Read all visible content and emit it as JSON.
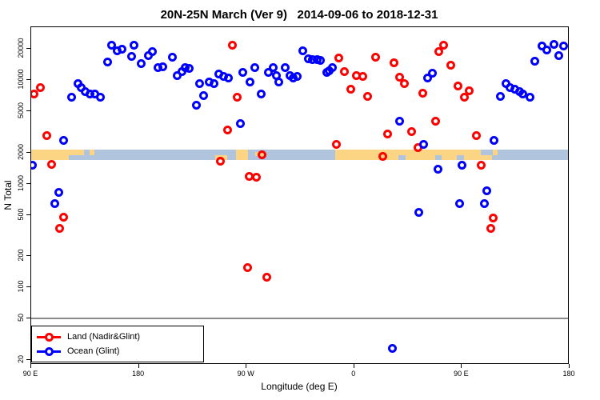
{
  "title": "20N-25N March (Ver 9)   2014-09-06 to 2018-12-31",
  "legend": {
    "items": [
      {
        "label": "Land (Nadir&Glint)",
        "color": "#ff0000"
      },
      {
        "label": "Ocean (Glint)",
        "color": "#0000ff"
      }
    ]
  },
  "chart_data": {
    "type": "scatter",
    "title": "20N-25N March (Ver 9)   2014-09-06 to 2018-12-31",
    "xlabel": "Longitude (deg E)",
    "ylabel": "N Total",
    "x_axis": {
      "wrap_note": "axis spans 450 deg of longitude starting at 90E, wrapping through 180/-180, 0, back to 180",
      "range_deg": [
        90,
        540
      ],
      "ticks": [
        {
          "u": 90,
          "label": "90 E"
        },
        {
          "u": 180,
          "label": "180"
        },
        {
          "u": 270,
          "label": "90 W"
        },
        {
          "u": 360,
          "label": "0"
        },
        {
          "u": 450,
          "label": "90 E"
        },
        {
          "u": 540,
          "label": "180"
        }
      ]
    },
    "y_axis": {
      "scale": "log",
      "ticks": [
        20,
        50,
        100,
        200,
        500,
        1000,
        2000,
        5000,
        10000,
        20000
      ],
      "log_range": [
        1.255,
        4.51
      ]
    },
    "reference_line": {
      "y": 50,
      "color": "#8a8a8a"
    },
    "land_ocean_strip": {
      "center_N": 2000,
      "land_color": "#fbd584",
      "ocean_color": "#b0c4de",
      "land_segments": [
        {
          "from": 90,
          "to": 121.5,
          "part": "full"
        },
        {
          "from": 121.5,
          "to": 134,
          "part": "top"
        },
        {
          "from": 139,
          "to": 143,
          "part": "top"
        },
        {
          "from": 244,
          "to": 254,
          "part": "bottom"
        },
        {
          "from": 261,
          "to": 271,
          "part": "full"
        },
        {
          "from": 277,
          "to": 285,
          "part": "mid"
        },
        {
          "from": 344,
          "to": 475,
          "part": "full"
        },
        {
          "from": 476,
          "to": 480,
          "part": "top"
        }
      ],
      "ocean_notches": [
        {
          "from": 397,
          "to": 403,
          "part": "bottom"
        },
        {
          "from": 428,
          "to": 433,
          "part": "bottom"
        },
        {
          "from": 446,
          "to": 452,
          "part": "bottom"
        },
        {
          "from": 466,
          "to": 475,
          "part": "top"
        }
      ]
    },
    "series": [
      {
        "name": "Land (Nadir&Glint)",
        "color": "#ff0000",
        "points": [
          [
            98,
            8500
          ],
          [
            92,
            7300
          ],
          [
            103,
            2900
          ],
          [
            107,
            1550
          ],
          [
            117,
            480
          ],
          [
            114,
            370
          ],
          [
            258,
            21800
          ],
          [
            262,
            6900
          ],
          [
            248,
            1660
          ],
          [
            254,
            3300
          ],
          [
            272,
            1170
          ],
          [
            278,
            1150
          ],
          [
            283,
            1920
          ],
          [
            271,
            155
          ],
          [
            287,
            125
          ],
          [
            345,
            2400
          ],
          [
            347,
            16400
          ],
          [
            352,
            12100
          ],
          [
            357,
            8200
          ],
          [
            362,
            11100
          ],
          [
            367,
            10900
          ],
          [
            371,
            7000
          ],
          [
            378,
            16700
          ],
          [
            384,
            1850
          ],
          [
            388,
            3000
          ],
          [
            393,
            14800
          ],
          [
            398,
            10700
          ],
          [
            402,
            9300
          ],
          [
            408,
            3200
          ],
          [
            413,
            2250
          ],
          [
            417,
            7500
          ],
          [
            428,
            4000
          ],
          [
            431,
            18900
          ],
          [
            435,
            21800
          ],
          [
            441,
            14000
          ],
          [
            447,
            8700
          ],
          [
            452,
            6900
          ],
          [
            456,
            7900
          ],
          [
            462,
            2900
          ],
          [
            466,
            1520
          ],
          [
            476,
            470
          ],
          [
            474,
            370
          ]
        ]
      },
      {
        "name": "Ocean (Glint)",
        "color": "#0000ff",
        "points": [
          [
            91,
            1520
          ],
          [
            124,
            6900
          ],
          [
            129,
            9300
          ],
          [
            132,
            8500
          ],
          [
            135,
            7800
          ],
          [
            139,
            7400
          ],
          [
            143,
            7300
          ],
          [
            148,
            6900
          ],
          [
            117,
            2640
          ],
          [
            113,
            830
          ],
          [
            110,
            650
          ],
          [
            154,
            15000
          ],
          [
            157,
            21800
          ],
          [
            162,
            19300
          ],
          [
            166,
            20000
          ],
          [
            174,
            17000
          ],
          [
            176,
            21800
          ],
          [
            182,
            14500
          ],
          [
            188,
            17300
          ],
          [
            191,
            18900
          ],
          [
            196,
            13300
          ],
          [
            200,
            13500
          ],
          [
            208,
            16700
          ],
          [
            212,
            11100
          ],
          [
            216,
            12100
          ],
          [
            219,
            13300
          ],
          [
            222,
            13000
          ],
          [
            231,
            9300
          ],
          [
            234,
            7100
          ],
          [
            228,
            5700
          ],
          [
            239,
            9600
          ],
          [
            243,
            9300
          ],
          [
            247,
            11500
          ],
          [
            251,
            10900
          ],
          [
            255,
            10400
          ],
          [
            265,
            3800
          ],
          [
            267,
            11900
          ],
          [
            273,
            9600
          ],
          [
            277,
            13300
          ],
          [
            282,
            7400
          ],
          [
            288,
            11900
          ],
          [
            292,
            13300
          ],
          [
            295,
            11100
          ],
          [
            297,
            9600
          ],
          [
            302,
            13300
          ],
          [
            306,
            11100
          ],
          [
            309,
            10400
          ],
          [
            312,
            10900
          ],
          [
            317,
            19300
          ],
          [
            322,
            16100
          ],
          [
            325,
            15900
          ],
          [
            329,
            15900
          ],
          [
            332,
            15600
          ],
          [
            337,
            11900
          ],
          [
            339,
            12400
          ],
          [
            342,
            13300
          ],
          [
            392,
            26
          ],
          [
            398,
            4000
          ],
          [
            414,
            530
          ],
          [
            418,
            2400
          ],
          [
            421,
            10400
          ],
          [
            425,
            11700
          ],
          [
            430,
            1390
          ],
          [
            448,
            640
          ],
          [
            450,
            1500
          ],
          [
            469,
            650
          ],
          [
            471,
            850
          ],
          [
            477,
            2640
          ],
          [
            482,
            7000
          ],
          [
            487,
            9300
          ],
          [
            490,
            8500
          ],
          [
            494,
            8100
          ],
          [
            498,
            7800
          ],
          [
            501,
            7400
          ],
          [
            507,
            6800
          ],
          [
            511,
            15300
          ],
          [
            517,
            21400
          ],
          [
            521,
            19600
          ],
          [
            527,
            22200
          ],
          [
            531,
            17300
          ],
          [
            535,
            21400
          ]
        ]
      }
    ]
  }
}
